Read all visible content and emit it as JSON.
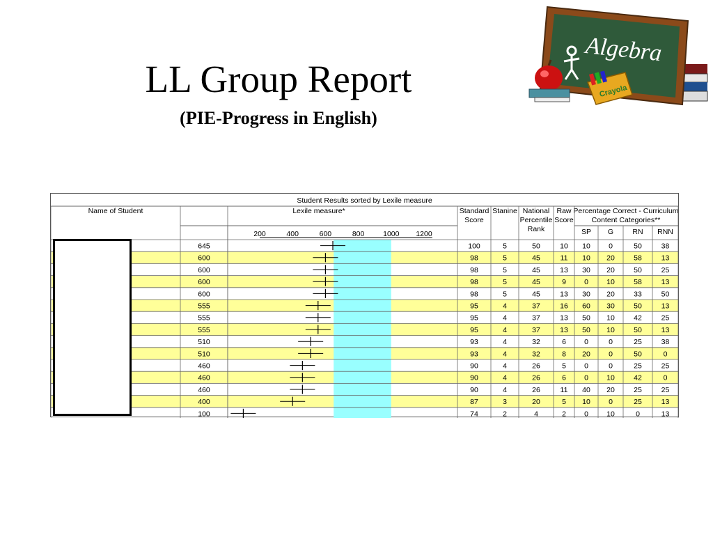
{
  "slide": {
    "title": "LL Group Report",
    "subtitle": "(PIE-Progress in English)"
  },
  "clipart": {
    "board_text": "Algebra",
    "crayon_text": "Crayola"
  },
  "table": {
    "caption": "Student Results sorted by Lexile measure",
    "headers": {
      "name": "Name of Student",
      "lexile": "Lexile measure*",
      "standard_score": [
        "Standard",
        "Score"
      ],
      "stanine": "Stanine",
      "percentile_rank": [
        "National",
        "Percentile",
        "Rank"
      ],
      "raw_score": [
        "Raw",
        "Score"
      ],
      "pct_correct": [
        "Percentage Correct - Curriculum",
        "Content Categories**"
      ],
      "categories": [
        "SP",
        "G",
        "RN",
        "RNN"
      ]
    },
    "lexile_scale": [
      "200",
      "400",
      "600",
      "800",
      "1000",
      "1200"
    ],
    "colors": {
      "highlight_row": "#ffff99",
      "target_band": "#99ffff",
      "grid": "#666666"
    },
    "rows": [
      {
        "lexile": 645,
        "standard": 100,
        "stanine": 5,
        "npr": 50,
        "raw": 10,
        "sp": 10,
        "g": 0,
        "rn": 50,
        "rnn": 38
      },
      {
        "lexile": 600,
        "standard": 98,
        "stanine": 5,
        "npr": 45,
        "raw": 11,
        "sp": 10,
        "g": 20,
        "rn": 58,
        "rnn": 13
      },
      {
        "lexile": 600,
        "standard": 98,
        "stanine": 5,
        "npr": 45,
        "raw": 13,
        "sp": 30,
        "g": 20,
        "rn": 50,
        "rnn": 25
      },
      {
        "lexile": 600,
        "standard": 98,
        "stanine": 5,
        "npr": 45,
        "raw": 9,
        "sp": 0,
        "g": 10,
        "rn": 58,
        "rnn": 13
      },
      {
        "lexile": 600,
        "standard": 98,
        "stanine": 5,
        "npr": 45,
        "raw": 13,
        "sp": 30,
        "g": 20,
        "rn": 33,
        "rnn": 50
      },
      {
        "lexile": 555,
        "standard": 95,
        "stanine": 4,
        "npr": 37,
        "raw": 16,
        "sp": 60,
        "g": 30,
        "rn": 50,
        "rnn": 13
      },
      {
        "lexile": 555,
        "standard": 95,
        "stanine": 4,
        "npr": 37,
        "raw": 13,
        "sp": 50,
        "g": 10,
        "rn": 42,
        "rnn": 25
      },
      {
        "lexile": 555,
        "standard": 95,
        "stanine": 4,
        "npr": 37,
        "raw": 13,
        "sp": 50,
        "g": 10,
        "rn": 50,
        "rnn": 13
      },
      {
        "lexile": 510,
        "standard": 93,
        "stanine": 4,
        "npr": 32,
        "raw": 6,
        "sp": 0,
        "g": 0,
        "rn": 25,
        "rnn": 38
      },
      {
        "lexile": 510,
        "standard": 93,
        "stanine": 4,
        "npr": 32,
        "raw": 8,
        "sp": 20,
        "g": 0,
        "rn": 50,
        "rnn": 0
      },
      {
        "lexile": 460,
        "standard": 90,
        "stanine": 4,
        "npr": 26,
        "raw": 5,
        "sp": 0,
        "g": 0,
        "rn": 25,
        "rnn": 25
      },
      {
        "lexile": 460,
        "standard": 90,
        "stanine": 4,
        "npr": 26,
        "raw": 6,
        "sp": 0,
        "g": 10,
        "rn": 42,
        "rnn": 0
      },
      {
        "lexile": 460,
        "standard": 90,
        "stanine": 4,
        "npr": 26,
        "raw": 11,
        "sp": 40,
        "g": 20,
        "rn": 25,
        "rnn": 25
      },
      {
        "lexile": 400,
        "standard": 87,
        "stanine": 3,
        "npr": 20,
        "raw": 5,
        "sp": 10,
        "g": 0,
        "rn": 25,
        "rnn": 13
      },
      {
        "lexile": 100,
        "standard": 74,
        "stanine": 2,
        "npr": 4,
        "raw": 2,
        "sp": 0,
        "g": 10,
        "rn": 0,
        "rnn": 13
      }
    ]
  }
}
